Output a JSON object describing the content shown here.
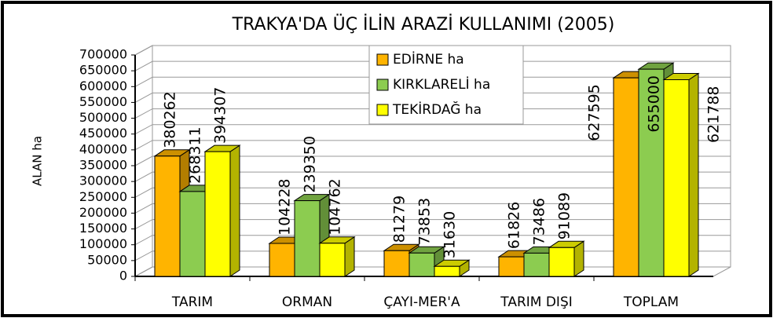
{
  "chart_data": {
    "type": "bar3d",
    "title": "TRAKYA'DA ÜÇ İLİN ARAZİ KULLANIMI (2005)",
    "y_label": "ALAN  ha",
    "categories": [
      "TARIM",
      "ORMAN",
      "ÇAYI-MER'A",
      "TARIM DIŞI",
      "TOPLAM"
    ],
    "series": [
      {
        "name": "EDİRNE ha",
        "color": "#ffb400",
        "values": [
          380262,
          104228,
          81279,
          61826,
          627595
        ]
      },
      {
        "name": "KIRKLARELİ ha",
        "color": "#8ccc50",
        "values": [
          268311,
          239350,
          73853,
          73486,
          655000
        ]
      },
      {
        "name": "TEKİRDAĞ ha",
        "color": "#ffff00",
        "values": [
          394307,
          104762,
          31630,
          91089,
          621788
        ]
      }
    ],
    "ylim": [
      0,
      700000
    ],
    "yticks": [
      0,
      50000,
      100000,
      150000,
      200000,
      250000,
      300000,
      350000,
      400000,
      450000,
      500000,
      550000,
      600000,
      650000,
      700000
    ],
    "grid": true,
    "legend": "top"
  }
}
